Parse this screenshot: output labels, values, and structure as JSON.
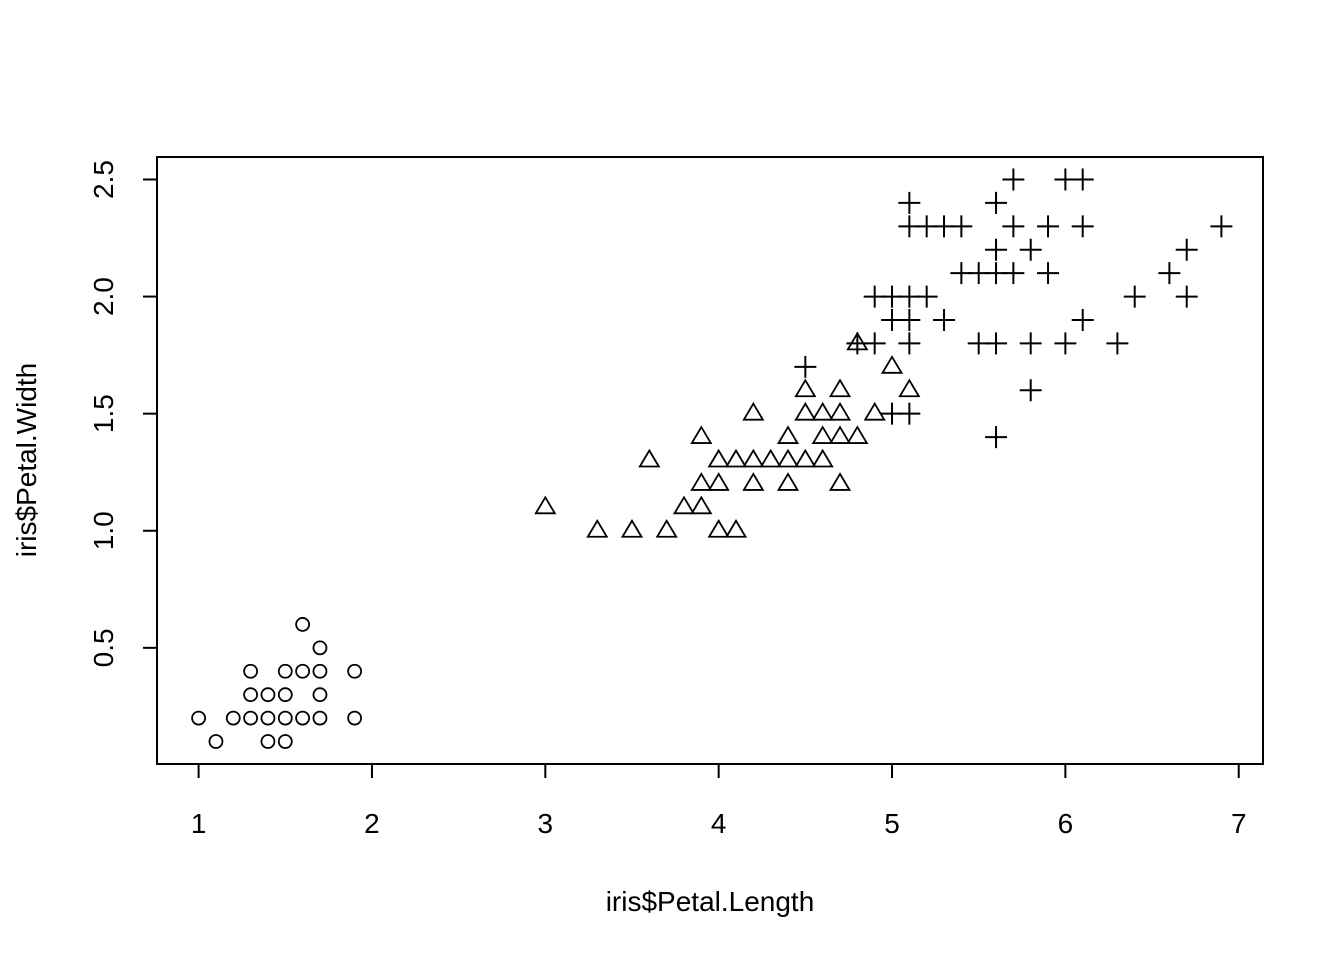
{
  "chart_data": {
    "type": "scatter",
    "title": "",
    "xlabel": "iris$Petal.Length",
    "ylabel": "iris$Petal.Width",
    "xlim": [
      0.76,
      7.14
    ],
    "ylim": [
      0.004,
      2.596
    ],
    "x_ticks": [
      "1",
      "2",
      "3",
      "4",
      "5",
      "6",
      "7"
    ],
    "y_ticks": [
      "0.5",
      "1.0",
      "1.5",
      "2.0",
      "2.5"
    ],
    "grid": false,
    "legend": "none",
    "series": [
      {
        "marker": "circle",
        "points": [
          [
            1.0,
            0.2
          ],
          [
            1.1,
            0.1
          ],
          [
            1.2,
            0.2
          ],
          [
            1.3,
            0.2
          ],
          [
            1.3,
            0.3
          ],
          [
            1.3,
            0.4
          ],
          [
            1.4,
            0.1
          ],
          [
            1.4,
            0.2
          ],
          [
            1.4,
            0.3
          ],
          [
            1.5,
            0.1
          ],
          [
            1.5,
            0.2
          ],
          [
            1.5,
            0.3
          ],
          [
            1.5,
            0.4
          ],
          [
            1.6,
            0.2
          ],
          [
            1.6,
            0.4
          ],
          [
            1.6,
            0.6
          ],
          [
            1.7,
            0.2
          ],
          [
            1.7,
            0.3
          ],
          [
            1.7,
            0.4
          ],
          [
            1.7,
            0.5
          ],
          [
            1.9,
            0.2
          ],
          [
            1.9,
            0.4
          ]
        ]
      },
      {
        "marker": "triangle",
        "points": [
          [
            3.0,
            1.1
          ],
          [
            3.3,
            1.0
          ],
          [
            3.5,
            1.0
          ],
          [
            3.6,
            1.3
          ],
          [
            3.7,
            1.0
          ],
          [
            3.8,
            1.1
          ],
          [
            3.9,
            1.1
          ],
          [
            3.9,
            1.2
          ],
          [
            3.9,
            1.4
          ],
          [
            4.0,
            1.0
          ],
          [
            4.0,
            1.2
          ],
          [
            4.0,
            1.3
          ],
          [
            4.1,
            1.0
          ],
          [
            4.1,
            1.3
          ],
          [
            4.2,
            1.2
          ],
          [
            4.2,
            1.3
          ],
          [
            4.2,
            1.5
          ],
          [
            4.3,
            1.3
          ],
          [
            4.4,
            1.2
          ],
          [
            4.4,
            1.3
          ],
          [
            4.4,
            1.4
          ],
          [
            4.5,
            1.3
          ],
          [
            4.5,
            1.5
          ],
          [
            4.5,
            1.6
          ],
          [
            4.6,
            1.3
          ],
          [
            4.6,
            1.4
          ],
          [
            4.6,
            1.5
          ],
          [
            4.7,
            1.2
          ],
          [
            4.7,
            1.4
          ],
          [
            4.7,
            1.5
          ],
          [
            4.7,
            1.6
          ],
          [
            4.8,
            1.4
          ],
          [
            4.8,
            1.8
          ],
          [
            4.9,
            1.5
          ],
          [
            5.0,
            1.7
          ],
          [
            5.1,
            1.6
          ]
        ]
      },
      {
        "marker": "plus",
        "points": [
          [
            4.5,
            1.7
          ],
          [
            4.8,
            1.8
          ],
          [
            4.9,
            1.8
          ],
          [
            4.9,
            2.0
          ],
          [
            5.0,
            1.5
          ],
          [
            5.0,
            1.9
          ],
          [
            5.0,
            2.0
          ],
          [
            5.1,
            1.5
          ],
          [
            5.1,
            1.8
          ],
          [
            5.1,
            1.9
          ],
          [
            5.1,
            2.0
          ],
          [
            5.1,
            2.3
          ],
          [
            5.1,
            2.4
          ],
          [
            5.2,
            2.0
          ],
          [
            5.2,
            2.3
          ],
          [
            5.3,
            1.9
          ],
          [
            5.3,
            2.3
          ],
          [
            5.4,
            2.1
          ],
          [
            5.4,
            2.3
          ],
          [
            5.5,
            1.8
          ],
          [
            5.5,
            2.1
          ],
          [
            5.6,
            1.4
          ],
          [
            5.6,
            1.8
          ],
          [
            5.6,
            2.1
          ],
          [
            5.6,
            2.2
          ],
          [
            5.6,
            2.4
          ],
          [
            5.7,
            2.1
          ],
          [
            5.7,
            2.3
          ],
          [
            5.7,
            2.5
          ],
          [
            5.8,
            1.6
          ],
          [
            5.8,
            1.8
          ],
          [
            5.8,
            2.2
          ],
          [
            5.9,
            2.1
          ],
          [
            5.9,
            2.3
          ],
          [
            6.0,
            1.8
          ],
          [
            6.0,
            2.5
          ],
          [
            6.1,
            1.9
          ],
          [
            6.1,
            2.3
          ],
          [
            6.1,
            2.5
          ],
          [
            6.3,
            1.8
          ],
          [
            6.4,
            2.0
          ],
          [
            6.6,
            2.1
          ],
          [
            6.7,
            2.0
          ],
          [
            6.7,
            2.2
          ],
          [
            6.9,
            2.3
          ]
        ]
      }
    ]
  }
}
